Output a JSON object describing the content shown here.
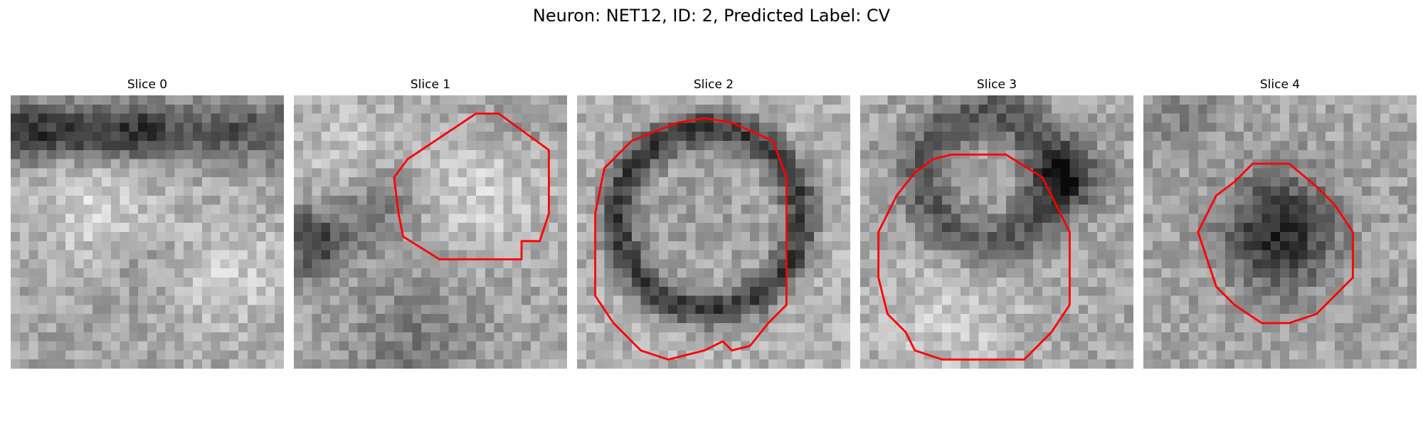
{
  "figure": {
    "title": "Neuron: NET12, ID: 2, Predicted Label: CV",
    "contour_color": "#ff0000",
    "colormap": "gray",
    "slices": [
      {
        "title": "Slice 0",
        "has_contour": false,
        "pattern": "band"
      },
      {
        "title": "Slice 1",
        "has_contour": true,
        "pattern": "bright-right"
      },
      {
        "title": "Slice 2",
        "has_contour": true,
        "pattern": "ring"
      },
      {
        "title": "Slice 3",
        "has_contour": true,
        "pattern": "ring-offset"
      },
      {
        "title": "Slice 4",
        "has_contour": true,
        "pattern": "dark-blob"
      }
    ]
  }
}
